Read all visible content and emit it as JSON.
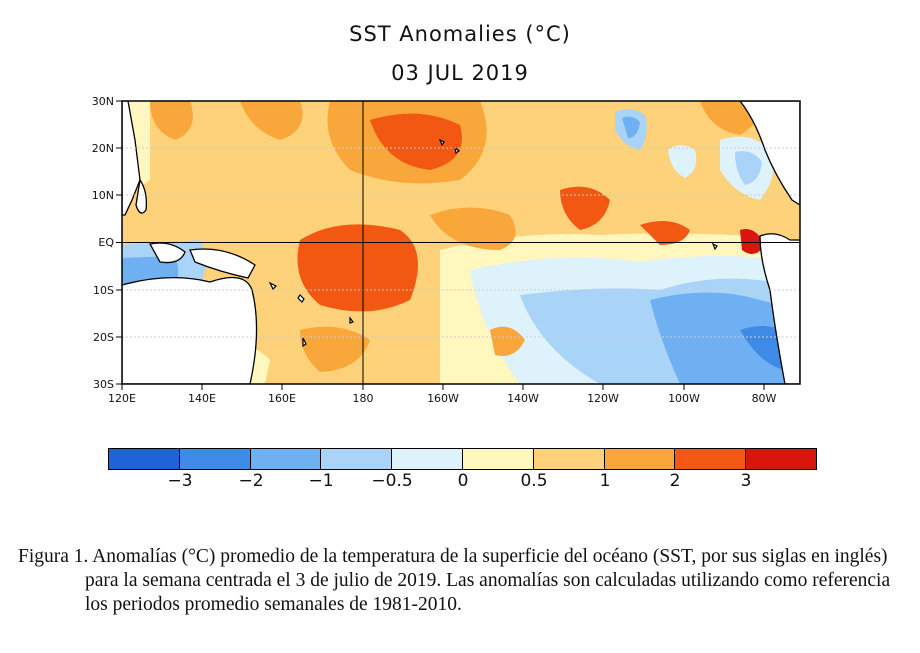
{
  "title": "SST Anomalies (°C)",
  "date": "03 JUL 2019",
  "lat_labels": [
    "30N",
    "20N",
    "10N",
    "EQ",
    "10S",
    "20S",
    "30S"
  ],
  "lon_labels": [
    "120E",
    "140E",
    "160E",
    "180",
    "160W",
    "140W",
    "120W",
    "100W",
    "80W"
  ],
  "colorbar": {
    "colors": [
      "#1f64d6",
      "#3f8ae6",
      "#6fb0f2",
      "#a9d4f7",
      "#def2fb",
      "#fff7be",
      "#fdd27a",
      "#f9a73a",
      "#f25812",
      "#d8160e"
    ],
    "tick_labels": [
      "−3",
      "−2",
      "−1",
      "−0.5",
      "0",
      "0.5",
      "1",
      "2",
      "3"
    ]
  },
  "caption": "Figura 1. Anomalías (°C) promedio de la temperatura de la superficie del océano (SST, por sus siglas en inglés) para la semana centrada el 3 de julio de 2019. Las anomalías son calculadas utilizando como referencia los periodos promedio semanales de 1981-2010."
}
